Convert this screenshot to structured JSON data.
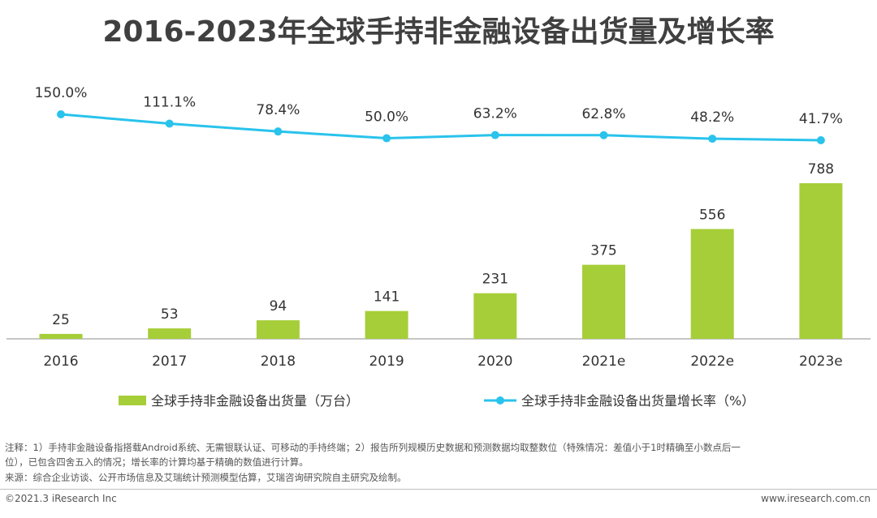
{
  "title": "2016-2023年全球手持非金融设备出货量及增长率",
  "chart_data": {
    "type": "bar+line",
    "categories": [
      "2016",
      "2017",
      "2018",
      "2019",
      "2020",
      "2021e",
      "2022e",
      "2023e"
    ],
    "series": [
      {
        "name": "全球手持非金融设备出货量（万台）",
        "type": "bar",
        "color": "#a6ce39",
        "values": [
          25,
          53,
          94,
          141,
          231,
          375,
          556,
          788
        ],
        "labels": [
          "25",
          "53",
          "94",
          "141",
          "231",
          "375",
          "556",
          "788"
        ]
      },
      {
        "name": "全球手持非金融设备出货量增长率（%）",
        "type": "line",
        "color": "#29c3ec",
        "values": [
          150.0,
          111.1,
          78.4,
          50.0,
          63.2,
          62.8,
          48.2,
          41.7
        ],
        "labels": [
          "150.0%",
          "111.1%",
          "78.4%",
          "50.0%",
          "63.2%",
          "62.8%",
          "48.2%",
          "41.7%"
        ]
      }
    ],
    "legend_position": "bottom"
  },
  "notes": {
    "line1": "注释：1）手持非金融设备指搭载Android系统、无需银联认证、可移动的手持终端；2）报告所列规模历史数据和预测数据均取整数位（特殊情况：差值小于1时精确至小数点后一",
    "line2": "位），已包含四舍五入的情况；增长率的计算均基于精确的数值进行计算。",
    "source": "来源：综合企业访谈、公开市场信息及艾瑞统计预测模型估算，艾瑞咨询研究院自主研究及绘制。"
  },
  "footer": {
    "copyright": "©2021.3 iResearch Inc",
    "website": "www.iresearch.com.cn"
  }
}
